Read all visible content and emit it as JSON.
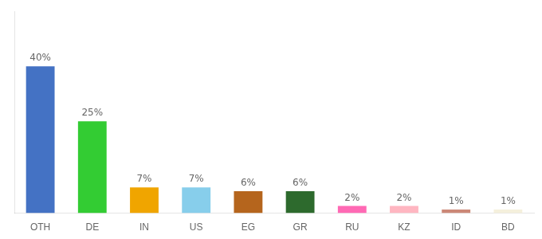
{
  "chart_data": {
    "type": "bar",
    "categories": [
      "OTH",
      "DE",
      "IN",
      "US",
      "EG",
      "GR",
      "RU",
      "KZ",
      "ID",
      "BD"
    ],
    "values": [
      40,
      25,
      7,
      7,
      6,
      6,
      2,
      2,
      1,
      1
    ],
    "value_labels": [
      "40%",
      "25%",
      "7%",
      "7%",
      "6%",
      "6%",
      "2%",
      "2%",
      "1%",
      "1%"
    ],
    "data_labels": true,
    "colors": [
      "#4472c4",
      "#33cc33",
      "#f0a500",
      "#87ceeb",
      "#b5651d",
      "#2d6a2d",
      "#ff69b4",
      "#ffb6c1",
      "#cc8877",
      "#f5f0dc"
    ],
    "ylim": [
      0,
      55
    ],
    "grid": false,
    "tick_labels": "x"
  }
}
